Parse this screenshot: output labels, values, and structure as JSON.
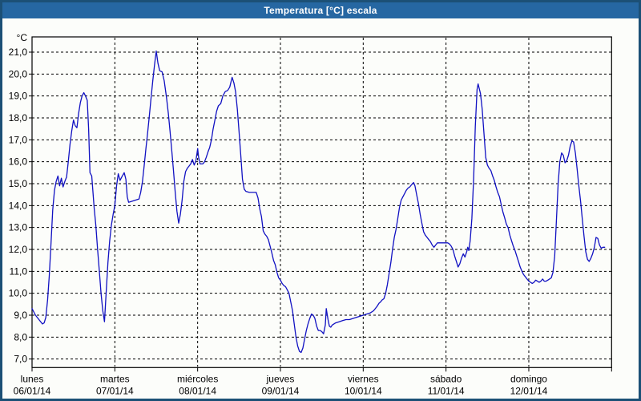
{
  "window": {
    "title": "Temperatura [°C] escala"
  },
  "colors": {
    "titlebar_bg": "#2667a2",
    "titlebar_text": "#ffffff",
    "window_border": "#1c5076",
    "background": "#fcfdfa",
    "plot_border": "#000000",
    "grid": "#000000",
    "line": "#1111c2"
  },
  "chart_data": {
    "type": "line",
    "title": "Temperatura [°C] escala",
    "series_name": "Temperatura",
    "grid": "dashed",
    "legend_position": "none",
    "y_axis": {
      "unit_label": "°C",
      "min": 6.6,
      "max": 21.7,
      "ticks": [
        {
          "value": 21,
          "label": "21,0"
        },
        {
          "value": 20,
          "label": "20,0"
        },
        {
          "value": 19,
          "label": "19,0"
        },
        {
          "value": 18,
          "label": "18,0"
        },
        {
          "value": 17,
          "label": "17,0"
        },
        {
          "value": 16,
          "label": "16,0"
        },
        {
          "value": 15,
          "label": "15,0"
        },
        {
          "value": 14,
          "label": "14,0"
        },
        {
          "value": 13,
          "label": "13,0"
        },
        {
          "value": 12,
          "label": "12,0"
        },
        {
          "value": 11,
          "label": "11,0"
        },
        {
          "value": 10,
          "label": "10,0"
        },
        {
          "value": 9,
          "label": "9,0"
        },
        {
          "value": 8,
          "label": "8,0"
        },
        {
          "value": 7,
          "label": "7,0"
        }
      ]
    },
    "x_axis": {
      "hours_total": 168,
      "days": [
        {
          "name": "lunes",
          "date": "06/01/14"
        },
        {
          "name": "martes",
          "date": "07/01/14"
        },
        {
          "name": "miércoles",
          "date": "08/01/14"
        },
        {
          "name": "jueves",
          "date": "09/01/14"
        },
        {
          "name": "viernes",
          "date": "10/01/14"
        },
        {
          "name": "sábado",
          "date": "11/01/14"
        },
        {
          "name": "domingo",
          "date": "12/01/14"
        }
      ]
    },
    "points": [
      [
        0,
        9.3
      ],
      [
        1,
        9.0
      ],
      [
        2,
        8.8
      ],
      [
        3,
        8.6
      ],
      [
        3.5,
        8.65
      ],
      [
        4,
        8.9
      ],
      [
        4.5,
        9.7
      ],
      [
        5,
        10.8
      ],
      [
        5.5,
        12.3
      ],
      [
        6,
        13.8
      ],
      [
        6.5,
        14.7
      ],
      [
        7,
        15.1
      ],
      [
        7.5,
        15.35
      ],
      [
        8,
        14.9
      ],
      [
        8.5,
        15.25
      ],
      [
        9,
        14.85
      ],
      [
        9.5,
        15.1
      ],
      [
        10,
        15.3
      ],
      [
        10.5,
        16.0
      ],
      [
        11,
        16.8
      ],
      [
        11.5,
        17.4
      ],
      [
        12,
        17.9
      ],
      [
        12.5,
        17.65
      ],
      [
        13,
        17.55
      ],
      [
        13.5,
        18.2
      ],
      [
        14,
        18.7
      ],
      [
        14.5,
        19.0
      ],
      [
        15,
        19.15
      ],
      [
        15.5,
        19.0
      ],
      [
        16,
        18.8
      ],
      [
        16.4,
        17.5
      ],
      [
        16.8,
        15.5
      ],
      [
        17.3,
        15.35
      ],
      [
        18,
        13.9
      ],
      [
        18.5,
        13.1
      ],
      [
        19,
        12.0
      ],
      [
        19.5,
        11.0
      ],
      [
        20,
        10.0
      ],
      [
        20.5,
        9.2
      ],
      [
        21,
        8.7
      ],
      [
        21.5,
        10.1
      ],
      [
        22,
        11.4
      ],
      [
        22.5,
        12.4
      ],
      [
        23,
        13.1
      ],
      [
        23.5,
        13.6
      ],
      [
        24,
        14.0
      ],
      [
        24.5,
        14.9
      ],
      [
        25,
        15.45
      ],
      [
        25.5,
        15.15
      ],
      [
        26,
        15.3
      ],
      [
        26.7,
        15.5
      ],
      [
        27.2,
        15.2
      ],
      [
        27.6,
        14.4
      ],
      [
        28,
        14.15
      ],
      [
        29,
        14.2
      ],
      [
        30,
        14.25
      ],
      [
        31,
        14.3
      ],
      [
        31.5,
        14.6
      ],
      [
        32,
        15.1
      ],
      [
        32.5,
        15.8
      ],
      [
        33,
        16.6
      ],
      [
        33.5,
        17.3
      ],
      [
        34,
        18.1
      ],
      [
        34.5,
        18.9
      ],
      [
        35,
        19.7
      ],
      [
        35.5,
        20.4
      ],
      [
        36,
        21.05
      ],
      [
        36.5,
        20.5
      ],
      [
        37,
        20.15
      ],
      [
        37.7,
        20.1
      ],
      [
        38.3,
        19.7
      ],
      [
        39,
        18.9
      ],
      [
        39.5,
        18.2
      ],
      [
        40,
        17.4
      ],
      [
        40.5,
        16.5
      ],
      [
        41,
        15.6
      ],
      [
        41.5,
        14.6
      ],
      [
        42,
        13.75
      ],
      [
        42.5,
        13.2
      ],
      [
        43,
        13.6
      ],
      [
        43.5,
        14.25
      ],
      [
        44,
        15.1
      ],
      [
        44.5,
        15.55
      ],
      [
        45,
        15.7
      ],
      [
        45.5,
        15.8
      ],
      [
        46,
        15.9
      ],
      [
        46.5,
        16.1
      ],
      [
        47,
        15.85
      ],
      [
        47.5,
        16.05
      ],
      [
        48,
        16.6
      ],
      [
        48.3,
        16.2
      ],
      [
        48.7,
        15.9
      ],
      [
        49.5,
        15.9
      ],
      [
        50,
        16.0
      ],
      [
        50.5,
        16.2
      ],
      [
        51,
        16.45
      ],
      [
        51.5,
        16.65
      ],
      [
        52,
        17.0
      ],
      [
        52.5,
        17.5
      ],
      [
        53,
        17.9
      ],
      [
        53.5,
        18.3
      ],
      [
        54,
        18.55
      ],
      [
        54.7,
        18.65
      ],
      [
        55.3,
        19.0
      ],
      [
        56,
        19.2
      ],
      [
        56.7,
        19.25
      ],
      [
        57.3,
        19.4
      ],
      [
        58,
        19.85
      ],
      [
        58.5,
        19.6
      ],
      [
        59,
        19.2
      ],
      [
        59.5,
        18.4
      ],
      [
        60,
        17.4
      ],
      [
        60.5,
        16.3
      ],
      [
        61,
        15.2
      ],
      [
        61.5,
        14.75
      ],
      [
        62,
        14.65
      ],
      [
        63,
        14.6
      ],
      [
        64,
        14.6
      ],
      [
        65,
        14.6
      ],
      [
        65.5,
        14.35
      ],
      [
        66,
        13.85
      ],
      [
        66.5,
        13.5
      ],
      [
        67,
        12.85
      ],
      [
        67.5,
        12.7
      ],
      [
        68,
        12.6
      ],
      [
        68.5,
        12.45
      ],
      [
        69,
        12.15
      ],
      [
        69.5,
        11.85
      ],
      [
        70,
        11.5
      ],
      [
        70.5,
        11.3
      ],
      [
        71,
        10.95
      ],
      [
        71.5,
        10.7
      ],
      [
        72,
        10.6
      ],
      [
        72.5,
        10.45
      ],
      [
        73,
        10.35
      ],
      [
        73.5,
        10.3
      ],
      [
        74,
        10.15
      ],
      [
        74.5,
        10.0
      ],
      [
        75,
        9.6
      ],
      [
        75.5,
        9.2
      ],
      [
        76,
        8.6
      ],
      [
        76.5,
        8.0
      ],
      [
        77,
        7.6
      ],
      [
        77.5,
        7.35
      ],
      [
        78,
        7.3
      ],
      [
        78.5,
        7.5
      ],
      [
        79,
        7.9
      ],
      [
        79.5,
        8.3
      ],
      [
        80,
        8.6
      ],
      [
        80.5,
        8.85
      ],
      [
        81,
        9.05
      ],
      [
        81.5,
        9.0
      ],
      [
        82,
        8.85
      ],
      [
        82.5,
        8.5
      ],
      [
        83,
        8.3
      ],
      [
        83.5,
        8.3
      ],
      [
        84,
        8.25
      ],
      [
        84.5,
        8.15
      ],
      [
        85,
        8.55
      ],
      [
        85.3,
        9.3
      ],
      [
        85.8,
        8.8
      ],
      [
        86.2,
        8.5
      ],
      [
        86.6,
        8.45
      ],
      [
        87,
        8.55
      ],
      [
        88,
        8.65
      ],
      [
        89,
        8.7
      ],
      [
        90,
        8.75
      ],
      [
        91,
        8.8
      ],
      [
        92,
        8.8
      ],
      [
        93,
        8.85
      ],
      [
        94,
        8.9
      ],
      [
        95,
        8.95
      ],
      [
        96,
        9.0
      ],
      [
        97,
        9.05
      ],
      [
        98,
        9.1
      ],
      [
        99,
        9.2
      ],
      [
        100,
        9.4
      ],
      [
        100.6,
        9.55
      ],
      [
        101,
        9.6
      ],
      [
        101.5,
        9.7
      ],
      [
        102,
        9.75
      ],
      [
        102.5,
        10.0
      ],
      [
        103,
        10.4
      ],
      [
        103.5,
        10.9
      ],
      [
        104,
        11.4
      ],
      [
        104.5,
        12.0
      ],
      [
        105,
        12.55
      ],
      [
        105.5,
        12.9
      ],
      [
        106,
        13.4
      ],
      [
        106.5,
        13.9
      ],
      [
        107,
        14.25
      ],
      [
        107.5,
        14.4
      ],
      [
        108,
        14.55
      ],
      [
        108.5,
        14.7
      ],
      [
        109,
        14.8
      ],
      [
        109.5,
        14.85
      ],
      [
        110,
        14.95
      ],
      [
        110.6,
        15.05
      ],
      [
        111,
        14.9
      ],
      [
        111.5,
        14.5
      ],
      [
        112,
        14.1
      ],
      [
        112.5,
        13.6
      ],
      [
        113,
        13.2
      ],
      [
        113.5,
        12.8
      ],
      [
        114,
        12.65
      ],
      [
        114.5,
        12.55
      ],
      [
        115,
        12.45
      ],
      [
        115.5,
        12.35
      ],
      [
        116,
        12.2
      ],
      [
        116.5,
        12.1
      ],
      [
        117,
        12.2
      ],
      [
        117.5,
        12.3
      ],
      [
        118.5,
        12.3
      ],
      [
        119.5,
        12.3
      ],
      [
        120.5,
        12.3
      ],
      [
        121,
        12.25
      ],
      [
        121.5,
        12.15
      ],
      [
        122,
        12.0
      ],
      [
        122.5,
        11.7
      ],
      [
        123,
        11.45
      ],
      [
        123.5,
        11.2
      ],
      [
        124,
        11.35
      ],
      [
        124.5,
        11.6
      ],
      [
        125,
        11.8
      ],
      [
        125.5,
        11.65
      ],
      [
        126,
        11.9
      ],
      [
        126.3,
        12.1
      ],
      [
        126.6,
        11.95
      ],
      [
        127,
        12.4
      ],
      [
        127.5,
        13.4
      ],
      [
        128,
        15.2
      ],
      [
        128.5,
        17.6
      ],
      [
        129,
        19.3
      ],
      [
        129.3,
        19.55
      ],
      [
        129.7,
        19.3
      ],
      [
        130,
        19.1
      ],
      [
        130.5,
        18.4
      ],
      [
        131,
        17.3
      ],
      [
        131.5,
        16.2
      ],
      [
        132,
        15.85
      ],
      [
        132.5,
        15.7
      ],
      [
        133,
        15.6
      ],
      [
        133.5,
        15.35
      ],
      [
        134,
        15.15
      ],
      [
        134.5,
        14.85
      ],
      [
        135,
        14.6
      ],
      [
        135.5,
        14.4
      ],
      [
        136,
        14.05
      ],
      [
        136.5,
        13.7
      ],
      [
        137,
        13.45
      ],
      [
        137.5,
        13.15
      ],
      [
        138,
        13.0
      ],
      [
        138.5,
        12.65
      ],
      [
        139,
        12.4
      ],
      [
        139.5,
        12.15
      ],
      [
        140,
        11.95
      ],
      [
        140.5,
        11.7
      ],
      [
        141,
        11.45
      ],
      [
        141.5,
        11.2
      ],
      [
        142,
        11.0
      ],
      [
        142.5,
        10.85
      ],
      [
        143,
        10.75
      ],
      [
        143.5,
        10.65
      ],
      [
        144,
        10.55
      ],
      [
        144.5,
        10.5
      ],
      [
        145,
        10.45
      ],
      [
        145.5,
        10.5
      ],
      [
        146,
        10.6
      ],
      [
        146.5,
        10.55
      ],
      [
        147,
        10.5
      ],
      [
        147.5,
        10.55
      ],
      [
        148,
        10.65
      ],
      [
        148.5,
        10.55
      ],
      [
        149,
        10.55
      ],
      [
        149.5,
        10.6
      ],
      [
        150,
        10.65
      ],
      [
        150.5,
        10.7
      ],
      [
        151,
        10.95
      ],
      [
        151.5,
        11.7
      ],
      [
        152,
        13.3
      ],
      [
        152.5,
        15.0
      ],
      [
        153,
        16.0
      ],
      [
        153.5,
        16.4
      ],
      [
        154,
        16.3
      ],
      [
        154.5,
        15.95
      ],
      [
        155,
        16.05
      ],
      [
        155.5,
        16.3
      ],
      [
        156,
        16.7
      ],
      [
        156.5,
        16.95
      ],
      [
        157,
        16.9
      ],
      [
        157.5,
        16.4
      ],
      [
        158,
        15.7
      ],
      [
        158.5,
        14.9
      ],
      [
        159,
        14.2
      ],
      [
        159.5,
        13.4
      ],
      [
        160,
        12.6
      ],
      [
        160.5,
        11.9
      ],
      [
        161,
        11.55
      ],
      [
        161.5,
        11.45
      ],
      [
        162,
        11.6
      ],
      [
        162.5,
        11.8
      ],
      [
        163,
        12.1
      ],
      [
        163.5,
        12.55
      ],
      [
        164,
        12.5
      ],
      [
        164.5,
        12.2
      ],
      [
        165,
        12.05
      ],
      [
        165.5,
        12.1
      ],
      [
        166,
        12.1
      ]
    ]
  }
}
